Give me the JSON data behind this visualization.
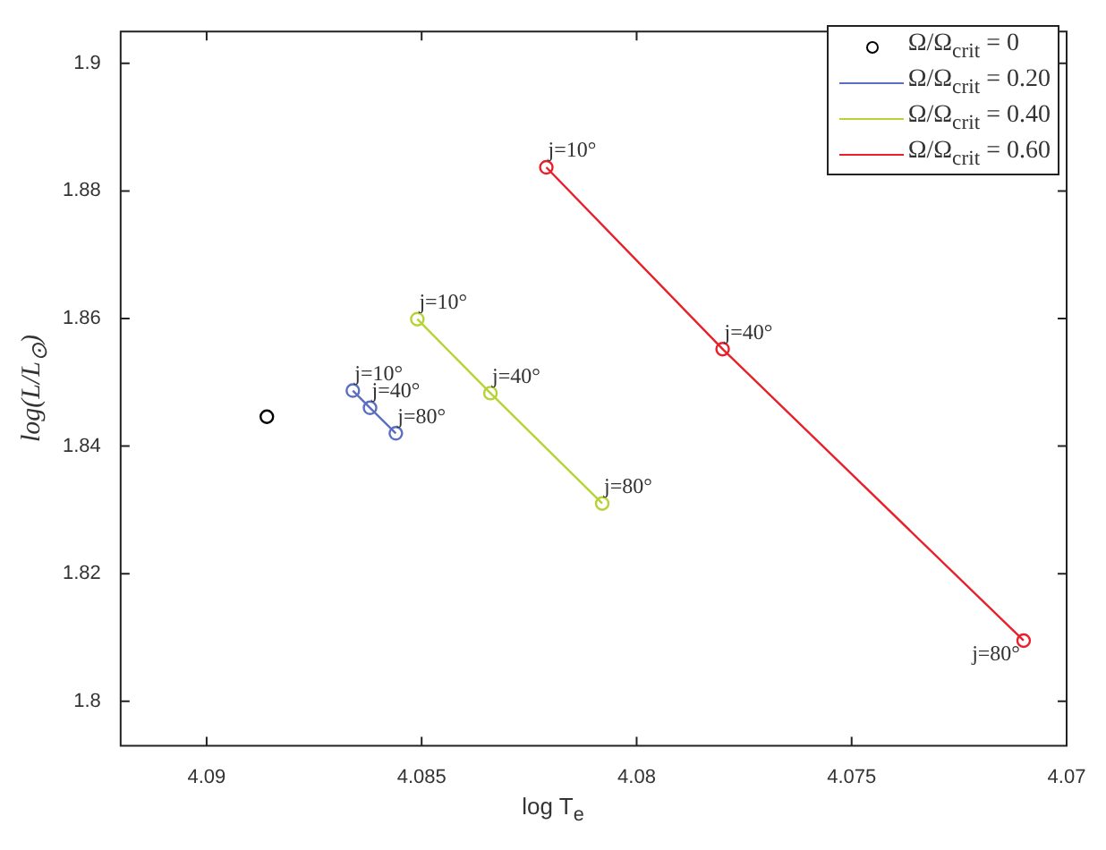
{
  "chart_data": {
    "type": "line",
    "xlabel": "log T$_{e}$",
    "ylabel": "log(L/L$_{⊙}$)",
    "xlim": [
      4.092,
      4.07
    ],
    "xticks": [
      4.09,
      4.085,
      4.08,
      4.075,
      4.07
    ],
    "ylim": [
      1.793,
      1.905
    ],
    "yticks": [
      1.8,
      1.82,
      1.84,
      1.86,
      1.88,
      1.9
    ],
    "grid": false,
    "legend": "top right",
    "marker": "circle",
    "line_style": "solid",
    "series": [
      {
        "name": "Ω/Ω$_{crit}$ = 0",
        "type": "scatter",
        "color": "#000000",
        "x": [
          4.0886
        ],
        "values": [
          1.8446
        ]
      },
      {
        "name": "Ω/Ω$_{crit}$ = 0.20",
        "type": "line",
        "color": "#5a6fc0",
        "x": [
          4.0866,
          4.0862,
          4.0856
        ],
        "values": [
          1.8487,
          1.846,
          1.842
        ]
      },
      {
        "name": "Ω/Ω$_{crit}$ = 0.40",
        "type": "line",
        "color": "#b5d334",
        "x": [
          4.0851,
          4.0834,
          4.0808
        ],
        "values": [
          1.8599,
          1.8483,
          1.831
        ]
      },
      {
        "name": "Ω/Ω$_{crit}$ = 0.60",
        "type": "line",
        "color": "#e8202a",
        "x": [
          4.0821,
          4.078,
          4.071
        ],
        "values": [
          1.8837,
          1.8552,
          1.8095
        ]
      }
    ],
    "annotations": [
      {
        "text": "j=10°",
        "x": 4.0866,
        "y": 1.8487
      },
      {
        "text": "j=40°",
        "x": 4.0862,
        "y": 1.846
      },
      {
        "text": "j=80°",
        "x": 4.0856,
        "y": 1.842
      },
      {
        "text": "j=10°",
        "x": 4.0851,
        "y": 1.8599
      },
      {
        "text": "j=40°",
        "x": 4.0834,
        "y": 1.8483
      },
      {
        "text": "j=80°",
        "x": 4.0808,
        "y": 1.831
      },
      {
        "text": "j=10°",
        "x": 4.0821,
        "y": 1.8837
      },
      {
        "text": "j=40°",
        "x": 4.078,
        "y": 1.8552
      },
      {
        "text": "j=80°",
        "x": 4.071,
        "y": 1.8095
      }
    ]
  }
}
